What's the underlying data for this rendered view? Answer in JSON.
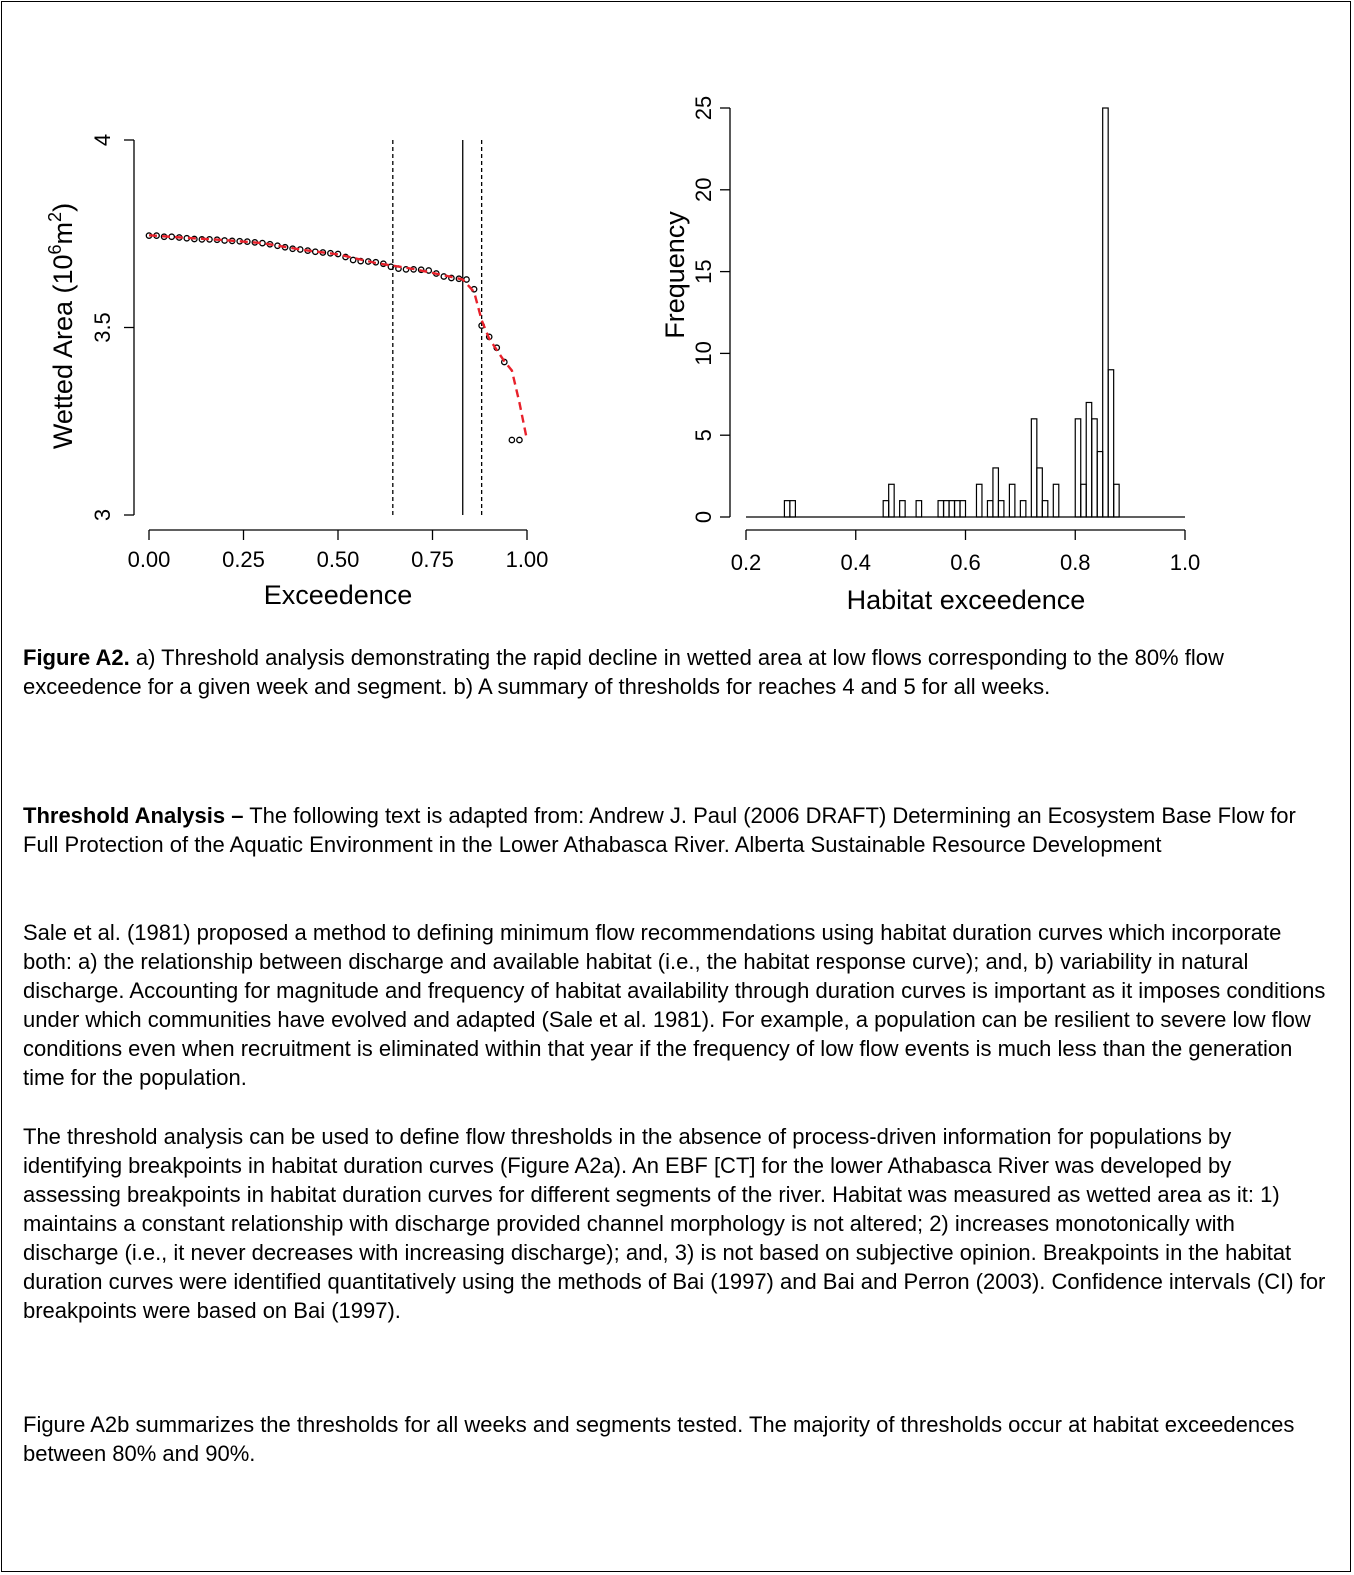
{
  "figure_a": {
    "ylabel": "Wetted Area (10",
    "ylabel_exp1": "6",
    "ylabel_mid": "m",
    "ylabel_exp2": "2",
    "ylabel_end": ")",
    "xlabel": "Exceedence",
    "xticks": [
      "0.00",
      "0.25",
      "0.50",
      "0.75",
      "1.00"
    ],
    "yticks": [
      "3",
      "3.5",
      "4"
    ]
  },
  "figure_b": {
    "ylabel": "Frequency",
    "xlabel": "Habitat exceedence",
    "xticks": [
      "0.2",
      "0.4",
      "0.6",
      "0.8",
      "1.0"
    ],
    "yticks": [
      "0",
      "5",
      "10",
      "15",
      "20",
      "25"
    ]
  },
  "chart_data": [
    {
      "type": "scatter",
      "xlabel": "Exceedence",
      "ylabel": "Wetted Area (10^6 m^2)",
      "xlim": [
        0,
        1
      ],
      "ylim": [
        3,
        4
      ],
      "series": [
        {
          "x": [
            0.0,
            0.02,
            0.04,
            0.06,
            0.08,
            0.1,
            0.12,
            0.14,
            0.16,
            0.18,
            0.2,
            0.22,
            0.24,
            0.26,
            0.28,
            0.3,
            0.32,
            0.34,
            0.36,
            0.38,
            0.4,
            0.42,
            0.44,
            0.46,
            0.48,
            0.5,
            0.52,
            0.54,
            0.56,
            0.58,
            0.6,
            0.62,
            0.64,
            0.66,
            0.68,
            0.7,
            0.72,
            0.74,
            0.76,
            0.78,
            0.8,
            0.82,
            0.84,
            0.86,
            0.88,
            0.9,
            0.92,
            0.94,
            0.96,
            0.98
          ],
          "y": [
            3.745,
            3.745,
            3.742,
            3.742,
            3.74,
            3.738,
            3.736,
            3.735,
            3.735,
            3.734,
            3.732,
            3.731,
            3.73,
            3.729,
            3.727,
            3.725,
            3.722,
            3.718,
            3.714,
            3.71,
            3.708,
            3.705,
            3.702,
            3.7,
            3.698,
            3.696,
            3.688,
            3.68,
            3.677,
            3.676,
            3.674,
            3.67,
            3.662,
            3.657,
            3.655,
            3.655,
            3.654,
            3.652,
            3.644,
            3.636,
            3.632,
            3.63,
            3.628,
            3.602,
            3.505,
            3.475,
            3.446,
            3.408,
            3.2,
            3.2
          ]
        }
      ],
      "fit_line": {
        "color": "#e8212b",
        "x": [
          0.0,
          0.1,
          0.2,
          0.3,
          0.4,
          0.5,
          0.6,
          0.7,
          0.8,
          0.83,
          0.86,
          0.88,
          0.9,
          0.94,
          0.96,
          0.98,
          1.0
        ],
        "y": [
          3.746,
          3.739,
          3.733,
          3.725,
          3.708,
          3.695,
          3.672,
          3.656,
          3.635,
          3.628,
          3.595,
          3.52,
          3.47,
          3.41,
          3.385,
          3.3,
          3.2
        ]
      },
      "vlines": [
        {
          "x": 0.645,
          "style": "dashed"
        },
        {
          "x": 0.83,
          "style": "solid"
        },
        {
          "x": 0.88,
          "style": "dashed"
        }
      ]
    },
    {
      "type": "bar",
      "xlabel": "Habitat exceedence",
      "ylabel": "Frequency",
      "xlim": [
        0.2,
        1.0
      ],
      "ylim": [
        0,
        25
      ],
      "bin_width": 0.01,
      "bins": [
        [
          0.27,
          1
        ],
        [
          0.28,
          1
        ],
        [
          0.45,
          1
        ],
        [
          0.46,
          2
        ],
        [
          0.48,
          1
        ],
        [
          0.51,
          1
        ],
        [
          0.55,
          1
        ],
        [
          0.56,
          1
        ],
        [
          0.57,
          1
        ],
        [
          0.58,
          1
        ],
        [
          0.59,
          1
        ],
        [
          0.62,
          2
        ],
        [
          0.64,
          1
        ],
        [
          0.65,
          3
        ],
        [
          0.66,
          1
        ],
        [
          0.68,
          2
        ],
        [
          0.7,
          1
        ],
        [
          0.72,
          6
        ],
        [
          0.73,
          3
        ],
        [
          0.74,
          1
        ],
        [
          0.76,
          2
        ],
        [
          0.8,
          6
        ],
        [
          0.81,
          2
        ],
        [
          0.82,
          7
        ],
        [
          0.83,
          6
        ],
        [
          0.84,
          4
        ],
        [
          0.85,
          25
        ],
        [
          0.86,
          9
        ],
        [
          0.87,
          2
        ]
      ]
    }
  ],
  "caption": {
    "label": "Figure A2.",
    "text": " a) Threshold analysis demonstrating the rapid decline in wetted area at low flows corresponding to the 80% flow exceedence for a given week and segment. b) A summary of thresholds for reaches 4 and 5 for all weeks."
  },
  "section": {
    "heading": "Threshold Analysis –",
    "intro": " The following text is adapted from: Andrew J. Paul (2006 DRAFT) Determining an Ecosystem Base Flow for Full Protection of the Aquatic Environment in the Lower Athabasca River. Alberta Sustainable Resource Development"
  },
  "paragraphs": [
    "Sale et al. (1981) proposed a method to defining minimum flow recommendations using habitat duration curves which incorporate both: a) the relationship between discharge and available habitat (i.e., the habitat response curve); and, b) variability in natural discharge.  Accounting for magnitude and frequency of habitat availability through duration curves is important as it imposes conditions under which communities have evolved and adapted (Sale et al. 1981).  For example, a population can be resilient to severe low flow conditions even when recruitment is eliminated within that year if the frequency of low flow events is much less than the generation time for the population.",
    "The threshold analysis can be used to define flow thresholds in the absence of process-driven information for populations by identifying breakpoints in habitat duration curves (Figure A2a). An EBF [CT] for the lower Athabasca River was developed by assessing breakpoints in habitat duration curves for different segments of the river.  Habitat was measured as wetted area as it: 1) maintains a constant relationship with discharge provided channel morphology is not altered; 2) increases monotonically with discharge (i.e., it never decreases with increasing discharge); and, 3) is not based on subjective opinion. Breakpoints in the habitat duration curves were identified quantitatively using the methods of Bai (1997) and Bai and Perron (2003).  Confidence intervals (CI) for breakpoints were based on Bai (1997).",
    "Figure A2b summarizes the thresholds for all weeks and segments tested. The majority of thresholds occur at habitat exceedences between 80% and 90%."
  ]
}
